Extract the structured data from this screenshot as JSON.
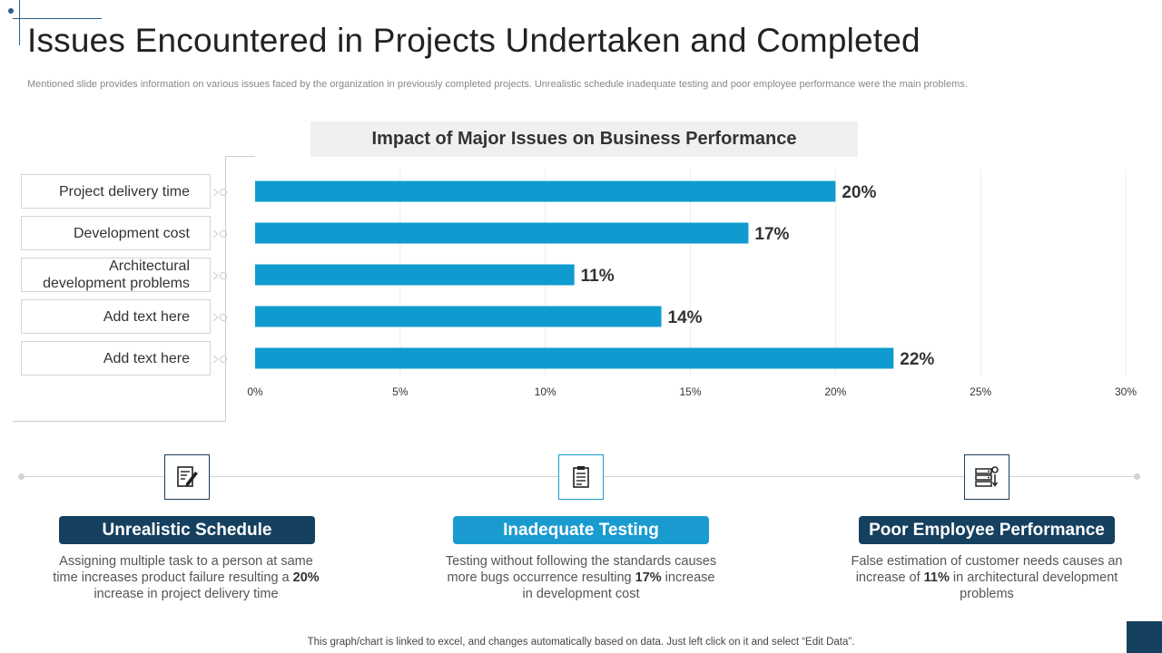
{
  "header": {
    "title": "Issues Encountered in Projects Undertaken and Completed",
    "subtitle": "Mentioned slide provides information on various issues faced by the organization in previously completed projects. Unrealistic schedule inadequate testing and poor employee performance were the main problems."
  },
  "chart_data": {
    "type": "bar",
    "orientation": "horizontal",
    "title": "Impact of Major Issues on Business Performance",
    "categories": [
      "Project delivery time",
      "Development cost",
      "Architectural development problems",
      "Add text here",
      "Add text here"
    ],
    "category_lines": [
      [
        "Project delivery time"
      ],
      [
        "Development cost"
      ],
      [
        "Architectural",
        "development problems"
      ],
      [
        "Add text here"
      ],
      [
        "Add text here"
      ]
    ],
    "values": [
      20,
      17,
      11,
      14,
      22
    ],
    "value_labels": [
      "20%",
      "17%",
      "11%",
      "14%",
      "22%"
    ],
    "xlim": [
      0,
      30
    ],
    "xticks": [
      0,
      5,
      10,
      15,
      20,
      25,
      30
    ],
    "xtick_labels": [
      "0%",
      "5%",
      "10%",
      "15%",
      "20%",
      "25%",
      "30%"
    ],
    "xlabel": "",
    "ylabel": "",
    "grid": true,
    "bar_color": "#0f9bcf"
  },
  "cards": [
    {
      "icon": "document-edit-icon",
      "title": "Unrealistic Schedule",
      "desc_pre": "Assigning multiple task to a person at same time increases product failure resulting a ",
      "desc_bold": "20%",
      "desc_post": " increase in project delivery time",
      "color": "#16405f"
    },
    {
      "icon": "document-list-icon",
      "title": "Inadequate Testing",
      "desc_pre": "Testing without following the standards causes more bugs occurrence resulting ",
      "desc_bold": "17%",
      "desc_post": " increase in development cost",
      "color": "#1a9bcf"
    },
    {
      "icon": "server-settings-icon",
      "title": "Poor Employee Performance",
      "desc_pre": "False estimation of customer needs causes an increase of ",
      "desc_bold": "11%",
      "desc_post": " in architectural development problems",
      "color": "#16405f"
    }
  ],
  "footer": {
    "note": "This graph/chart is linked to excel,  and changes automatically based on data. Just left click on it and select “Edit Data”."
  },
  "colors": {
    "accent_dark": "#16405f",
    "accent_light": "#1a9bcf",
    "bar": "#0f9bcf"
  }
}
